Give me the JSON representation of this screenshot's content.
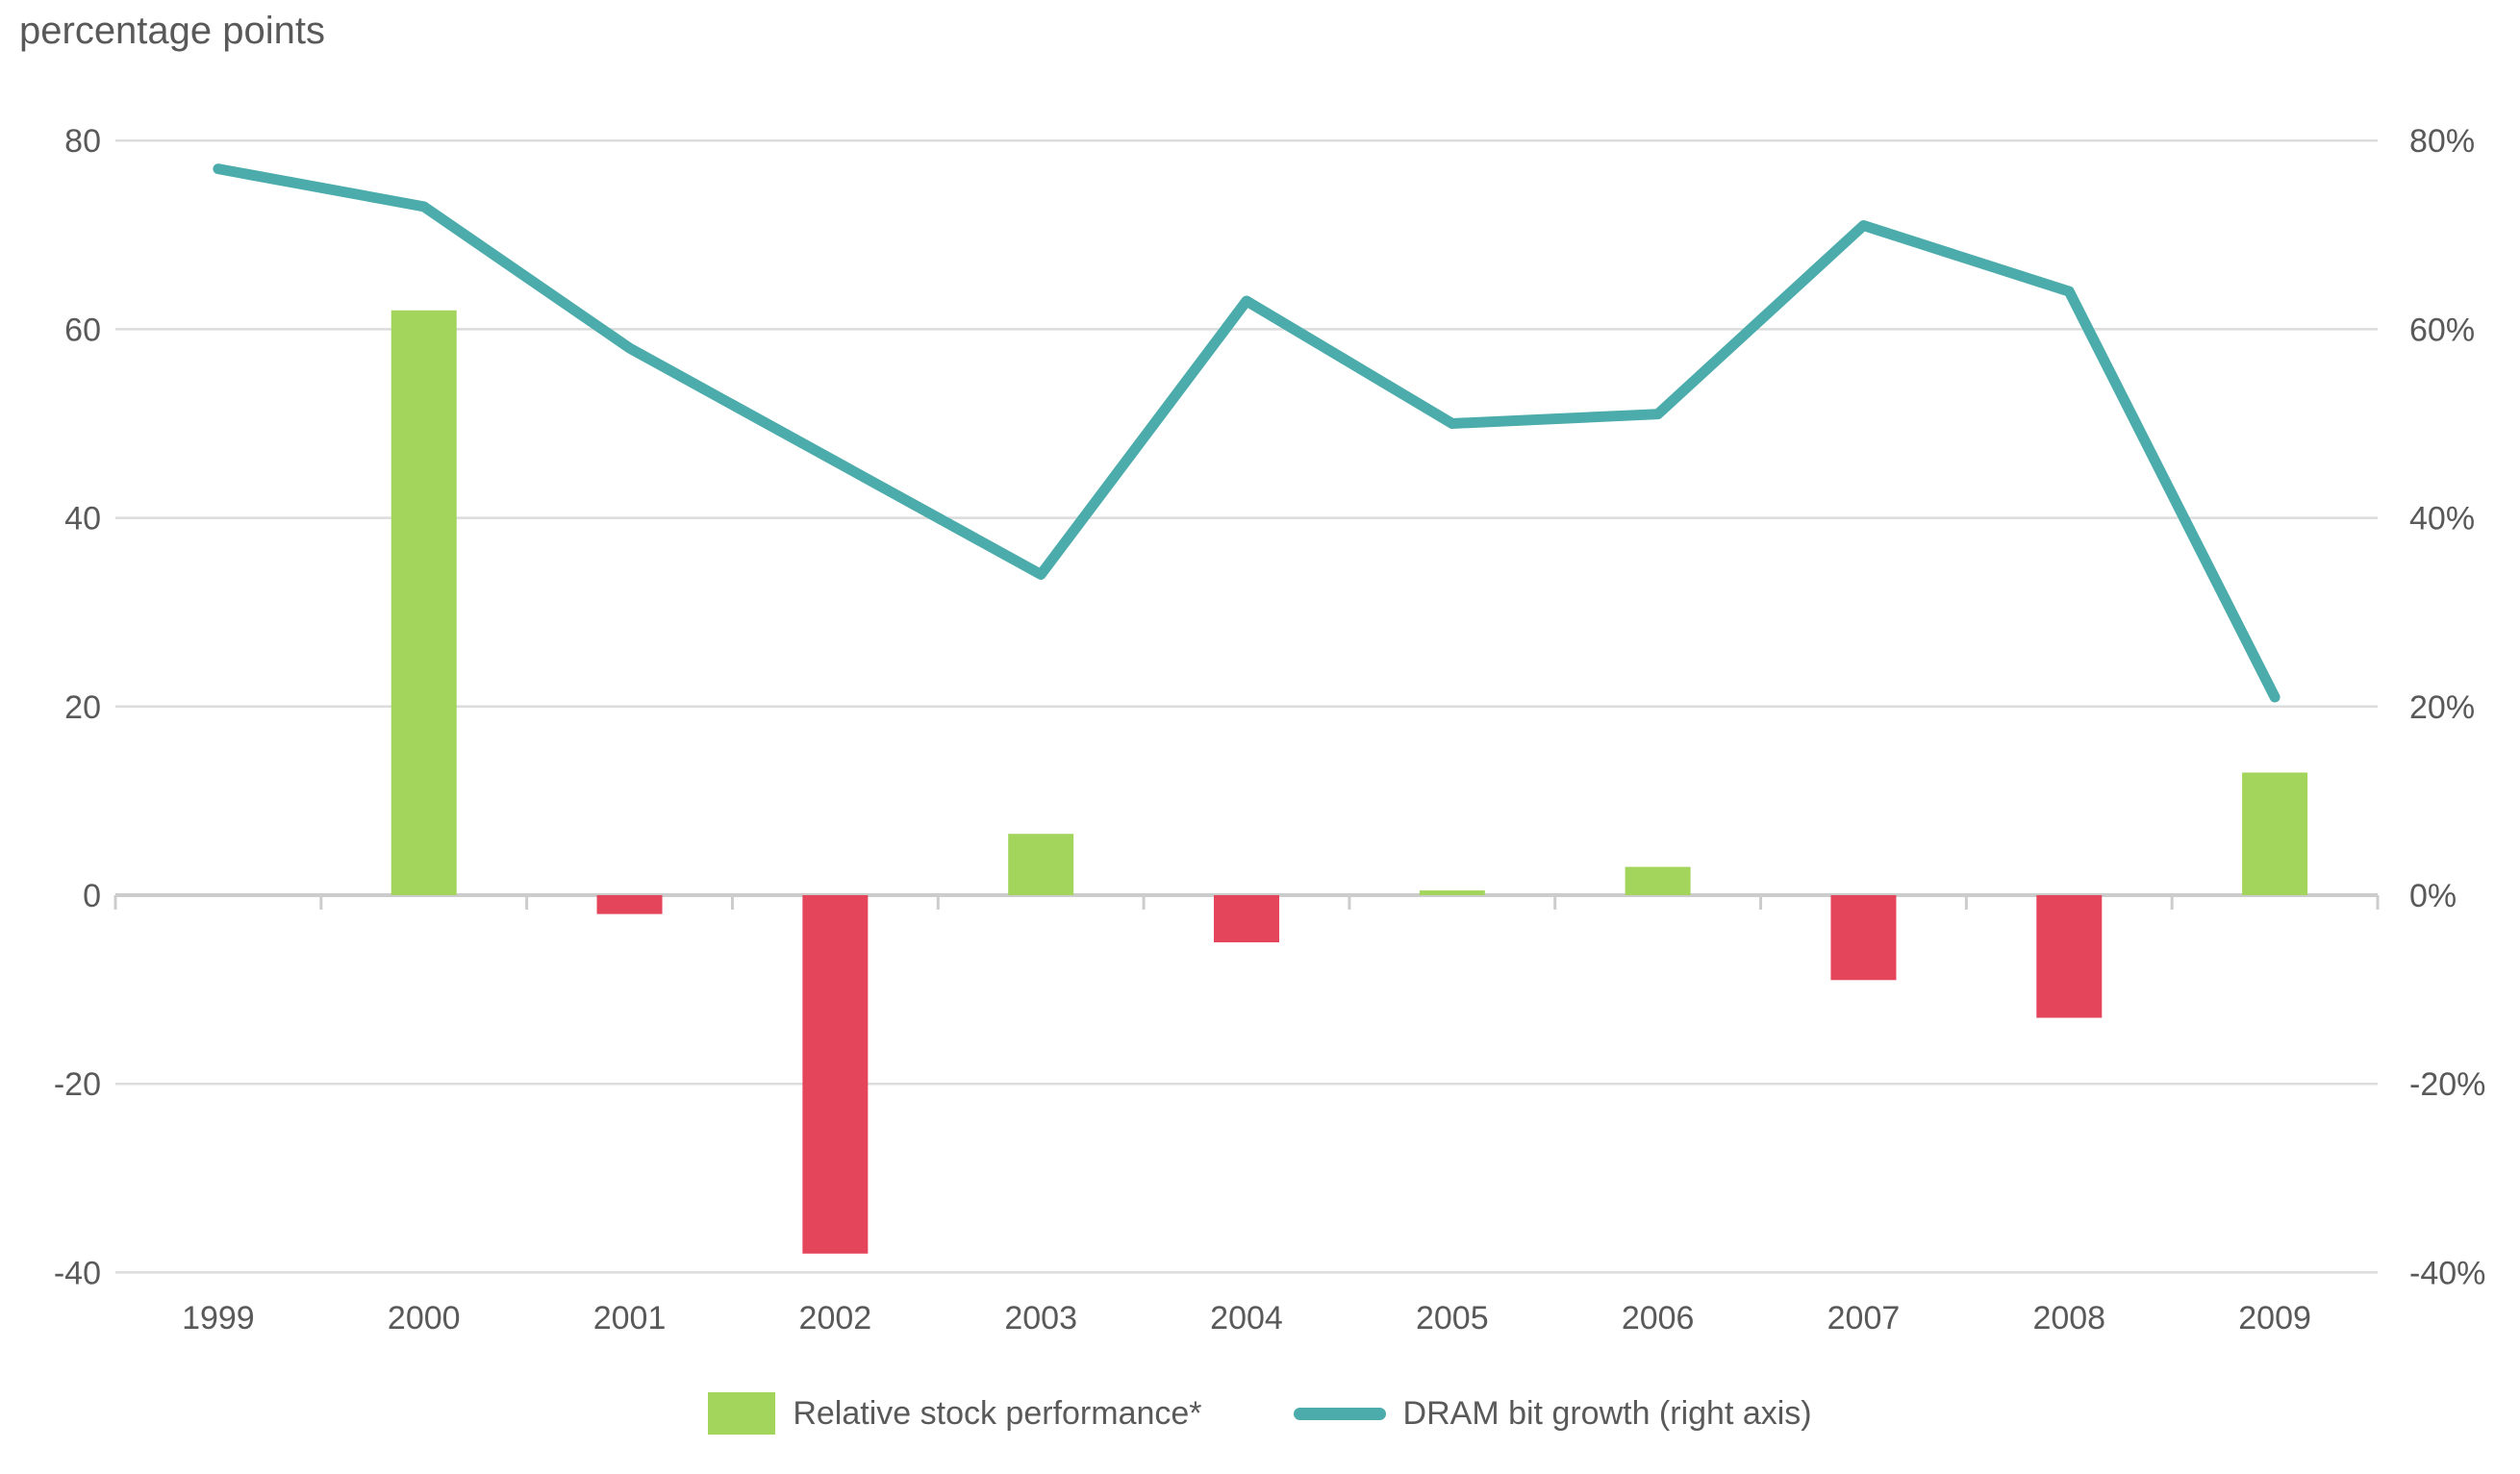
{
  "chart_data": {
    "type": "bar",
    "subtype": "combo-bar-line-dual-axis",
    "categories": [
      "1999",
      "2000",
      "2001",
      "2002",
      "2003",
      "2004",
      "2005",
      "2006",
      "2007",
      "2008",
      "2009"
    ],
    "series": [
      {
        "name": "Relative stock performance*",
        "type": "bar",
        "axis": "left",
        "values": [
          null,
          62,
          -2,
          -38,
          6.5,
          -5,
          0.5,
          3,
          -9,
          -13,
          13
        ],
        "color_positive": "#a3d45c",
        "color_negative": "#e5455b"
      },
      {
        "name": "DRAM bit growth (right axis)",
        "type": "line",
        "axis": "right",
        "values": [
          77,
          73,
          58,
          46,
          34,
          63,
          50,
          51,
          71,
          64,
          21
        ],
        "color": "#4bacab"
      }
    ],
    "left_axis": {
      "label": "percentage points",
      "ticks": [
        "80",
        "60",
        "40",
        "20",
        "0",
        "-20",
        "-40"
      ],
      "tick_values": [
        80,
        60,
        40,
        20,
        0,
        -20,
        -40
      ],
      "range": [
        -40,
        80
      ]
    },
    "right_axis": {
      "ticks": [
        "80%",
        "60%",
        "40%",
        "20%",
        "0%",
        "-20%",
        "-40%"
      ],
      "tick_values": [
        80,
        60,
        40,
        20,
        0,
        -20,
        -40
      ],
      "range": [
        -40,
        80
      ]
    },
    "grid": true,
    "legend_position": "bottom",
    "colors": {
      "gridline": "#dcdcdc",
      "axis_line": "#cccccc",
      "text": "#595959",
      "background": "#ffffff"
    }
  }
}
